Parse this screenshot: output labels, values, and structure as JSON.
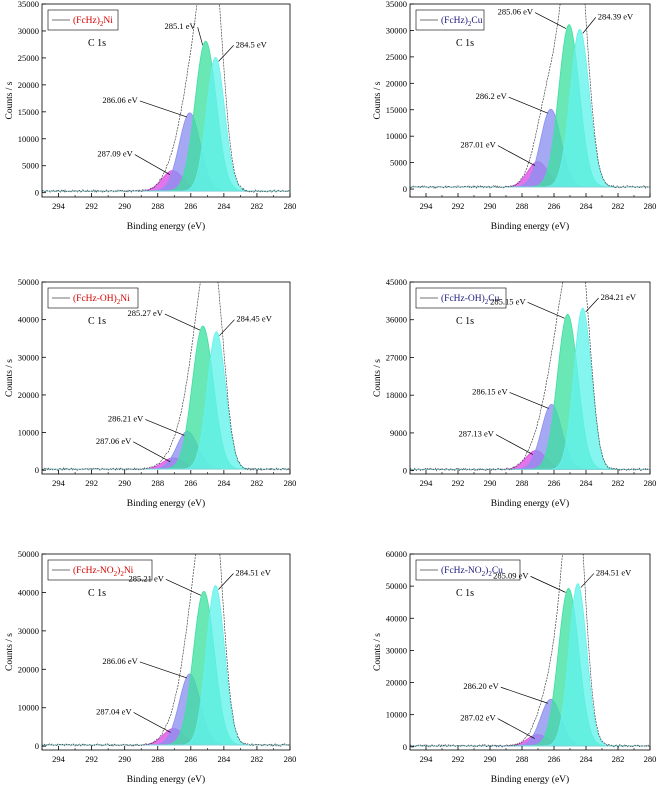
{
  "colors": {
    "peak_magenta": "#dd4de6",
    "peak_blue": "#8c8ff0",
    "peak_green": "#3fe0a0",
    "peak_cyan": "#63f2ec",
    "envelope": "#444444",
    "baseline": "#7fd3d8",
    "legend_red": "#d40000",
    "legend_blue": "#1a1a7a"
  },
  "chart_data": [
    {
      "type": "line",
      "legend": {
        "pre": "(FcHz)",
        "sub": "2",
        "post": "Ni",
        "color": "legend_red"
      },
      "annotation": "C 1s",
      "xlabel": "Binding energy (eV)",
      "ylabel": "Counts / s",
      "xlim": [
        295,
        280
      ],
      "ylim": [
        -800,
        35000
      ],
      "xticks": [
        "294",
        "292",
        "290",
        "288",
        "286",
        "284",
        "282",
        "280"
      ],
      "yticks": [
        "0",
        "5000",
        "10000",
        "15000",
        "20000",
        "25000",
        "30000",
        "35000"
      ],
      "peaks": [
        {
          "label": "287.09 eV",
          "center": 287.09,
          "height": 3800,
          "fwhm": 1.5,
          "color": "peak_magenta"
        },
        {
          "label": "286.06 eV",
          "center": 286.06,
          "height": 14500,
          "fwhm": 1.5,
          "color": "peak_blue"
        },
        {
          "label": "285.1 eV",
          "center": 285.1,
          "height": 27800,
          "fwhm": 1.5,
          "color": "peak_green"
        },
        {
          "label": "284.5 eV",
          "center": 284.5,
          "height": 24800,
          "fwhm": 1.3,
          "color": "peak_cyan"
        }
      ],
      "baseline": 300,
      "envelope_max": 29000
    },
    {
      "type": "line",
      "legend": {
        "pre": "(FcHz)",
        "sub": "2",
        "post": "Cu",
        "color": "legend_blue"
      },
      "annotation": "C 1s",
      "xlabel": "Binding energy (eV)",
      "ylabel": "Counts / s",
      "xlim": [
        295,
        280
      ],
      "ylim": [
        -1500,
        35000
      ],
      "xticks": [
        "294",
        "292",
        "290",
        "288",
        "286",
        "284",
        "282",
        "280"
      ],
      "yticks": [
        "0",
        "5000",
        "10000",
        "15000",
        "20000",
        "25000",
        "30000",
        "35000"
      ],
      "peaks": [
        {
          "label": "287.01 eV",
          "center": 287.01,
          "height": 4800,
          "fwhm": 1.5,
          "color": "peak_magenta"
        },
        {
          "label": "286.2 eV",
          "center": 286.2,
          "height": 14700,
          "fwhm": 1.5,
          "color": "peak_blue"
        },
        {
          "label": "285.06 eV",
          "center": 285.06,
          "height": 30700,
          "fwhm": 1.5,
          "color": "peak_green"
        },
        {
          "label": "284.39 eV",
          "center": 284.39,
          "height": 29800,
          "fwhm": 1.4,
          "color": "peak_cyan"
        }
      ],
      "baseline": 400,
      "envelope_max": 31300
    },
    {
      "type": "line",
      "legend": {
        "pre": "(FcHz-OH)",
        "sub": "2",
        "post": "Ni",
        "color": "legend_red"
      },
      "annotation": "C 1s",
      "xlabel": "Binding energy (eV)",
      "ylabel": "Counts / s",
      "xlim": [
        295,
        280
      ],
      "ylim": [
        -1000,
        50000
      ],
      "xticks": [
        "294",
        "292",
        "290",
        "288",
        "286",
        "284",
        "282",
        "280"
      ],
      "yticks": [
        "0",
        "10000",
        "20000",
        "30000",
        "40000",
        "50000"
      ],
      "peaks": [
        {
          "label": "287.06 eV",
          "center": 287.06,
          "height": 3000,
          "fwhm": 1.5,
          "color": "peak_magenta"
        },
        {
          "label": "286.21 eV",
          "center": 286.21,
          "height": 10000,
          "fwhm": 1.5,
          "color": "peak_blue"
        },
        {
          "label": "285.27 eV",
          "center": 285.27,
          "height": 38000,
          "fwhm": 1.5,
          "color": "peak_green"
        },
        {
          "label": "284.45 eV",
          "center": 284.45,
          "height": 36500,
          "fwhm": 1.3,
          "color": "peak_cyan"
        }
      ],
      "baseline": 300,
      "envelope_max": 43000
    },
    {
      "type": "line",
      "legend": {
        "pre": "(FcHz-OH)",
        "sub": "2",
        "post": "Cu",
        "color": "legend_blue"
      },
      "annotation": "C 1s",
      "xlabel": "Binding energy (eV)",
      "ylabel": "Counts / s",
      "xlim": [
        295,
        280
      ],
      "ylim": [
        -800,
        45000
      ],
      "xticks": [
        "294",
        "292",
        "290",
        "288",
        "286",
        "284",
        "282",
        "280"
      ],
      "yticks": [
        "0",
        "9000",
        "18000",
        "27000",
        "36000",
        "45000"
      ],
      "peaks": [
        {
          "label": "287.13 eV",
          "center": 287.13,
          "height": 4500,
          "fwhm": 1.5,
          "color": "peak_magenta"
        },
        {
          "label": "286.15 eV",
          "center": 286.15,
          "height": 15500,
          "fwhm": 1.5,
          "color": "peak_blue"
        },
        {
          "label": "285.15 eV",
          "center": 285.15,
          "height": 37000,
          "fwhm": 1.5,
          "color": "peak_green"
        },
        {
          "label": "284.21 eV",
          "center": 284.21,
          "height": 38500,
          "fwhm": 1.3,
          "color": "peak_cyan"
        }
      ],
      "baseline": 300,
      "envelope_max": 41500
    },
    {
      "type": "line",
      "legend": {
        "pre": "(FcHz-NO",
        "sub": "2",
        "post": ")",
        "sub2": "2",
        "post2": "Ni",
        "color": "legend_red"
      },
      "annotation": "C 1s",
      "xlabel": "Binding energy (eV)",
      "ylabel": "Counts / s",
      "xlim": [
        295,
        280
      ],
      "ylim": [
        -1000,
        50000
      ],
      "xticks": [
        "294",
        "292",
        "290",
        "288",
        "286",
        "284",
        "282",
        "280"
      ],
      "yticks": [
        "0",
        "10000",
        "20000",
        "30000",
        "40000",
        "50000"
      ],
      "peaks": [
        {
          "label": "287.04 eV",
          "center": 287.04,
          "height": 4300,
          "fwhm": 1.5,
          "color": "peak_magenta"
        },
        {
          "label": "286.06 eV",
          "center": 286.06,
          "height": 18500,
          "fwhm": 1.5,
          "color": "peak_blue"
        },
        {
          "label": "285.21 eV",
          "center": 285.21,
          "height": 40000,
          "fwhm": 1.5,
          "color": "peak_green"
        },
        {
          "label": "284.51 eV",
          "center": 284.51,
          "height": 41500,
          "fwhm": 1.3,
          "color": "peak_cyan"
        }
      ],
      "baseline": 300,
      "envelope_max": 45500
    },
    {
      "type": "line",
      "legend": {
        "pre": "(FcHz-NO",
        "sub": "2",
        "post": ")",
        "sub2": "2",
        "post2": "Cu",
        "color": "legend_blue"
      },
      "annotation": "C 1s",
      "xlabel": "Binding energy (eV)",
      "ylabel": "Counts / s",
      "xlim": [
        295,
        280
      ],
      "ylim": [
        -1000,
        60000
      ],
      "xticks": [
        "294",
        "292",
        "290",
        "288",
        "286",
        "284",
        "282",
        "280"
      ],
      "yticks": [
        "0",
        "10000",
        "20000",
        "30000",
        "40000",
        "50000",
        "60000"
      ],
      "peaks": [
        {
          "label": "287.02 eV",
          "center": 287.02,
          "height": 3500,
          "fwhm": 1.5,
          "color": "peak_magenta"
        },
        {
          "label": "286.20 eV",
          "center": 286.2,
          "height": 14500,
          "fwhm": 1.5,
          "color": "peak_blue"
        },
        {
          "label": "285.09 eV",
          "center": 285.09,
          "height": 49000,
          "fwhm": 1.5,
          "color": "peak_green"
        },
        {
          "label": "284.51 eV",
          "center": 284.51,
          "height": 50500,
          "fwhm": 1.3,
          "color": "peak_cyan"
        }
      ],
      "baseline": 300,
      "envelope_max": 54000
    }
  ]
}
